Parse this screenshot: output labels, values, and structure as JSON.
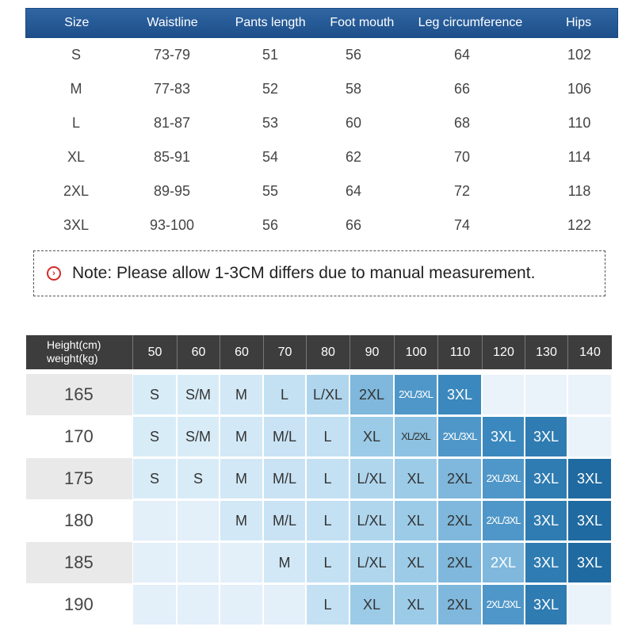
{
  "size_table": {
    "headers": [
      "Size",
      "Waistline",
      "Pants length",
      "Foot mouth",
      "Leg circumference",
      "Hips"
    ],
    "rows": [
      [
        "S",
        "73-79",
        "51",
        "56",
        "64",
        "102"
      ],
      [
        "M",
        "77-83",
        "52",
        "58",
        "66",
        "106"
      ],
      [
        "L",
        "81-87",
        "53",
        "60",
        "68",
        "110"
      ],
      [
        "XL",
        "85-91",
        "54",
        "62",
        "70",
        "114"
      ],
      [
        "2XL",
        "89-95",
        "55",
        "64",
        "72",
        "118"
      ],
      [
        "3XL",
        "93-100",
        "56",
        "66",
        "74",
        "122"
      ]
    ]
  },
  "note": {
    "icon": "chevron-circle-icon",
    "text": "Note: Please allow 1-3CM differs due to manual measurement."
  },
  "hw_chart": {
    "corner_line1": "Height(cm)",
    "corner_line2": "weight(kg)",
    "weights": [
      "50",
      "60",
      "60",
      "70",
      "80",
      "90",
      "100",
      "110",
      "120",
      "130",
      "140"
    ],
    "heights": [
      "165",
      "170",
      "175",
      "180",
      "185",
      "190"
    ],
    "cells": [
      [
        "S",
        "S/M",
        "M",
        "L",
        "L/XL",
        "2XL",
        "2XL/3XL",
        "3XL",
        "",
        "",
        ""
      ],
      [
        "S",
        "S/M",
        "M",
        "M/L",
        "L",
        "XL",
        "XL/2XL",
        "2XL/3XL",
        "3XL",
        "3XL",
        ""
      ],
      [
        "S",
        "S",
        "M",
        "M/L",
        "L",
        "L/XL",
        "XL",
        "2XL",
        "2XL/3XL",
        "3XL",
        "3XL"
      ],
      [
        "",
        "",
        "M",
        "M/L",
        "L",
        "L/XL",
        "XL",
        "2XL",
        "2XL/3XL",
        "3XL",
        "3XL"
      ],
      [
        "",
        "",
        "",
        "M",
        "L",
        "L/XL",
        "XL",
        "2XL",
        "2XL",
        "3XL",
        "3XL"
      ],
      [
        "",
        "",
        "",
        "",
        "L",
        "XL",
        "XL",
        "2XL",
        "2XL/3XL",
        "3XL",
        ""
      ]
    ],
    "colors": {
      "header_bg": "#3d3d3d",
      "size_table_header": "#1e4f8a",
      "note_icon": "#d42a2a"
    }
  }
}
